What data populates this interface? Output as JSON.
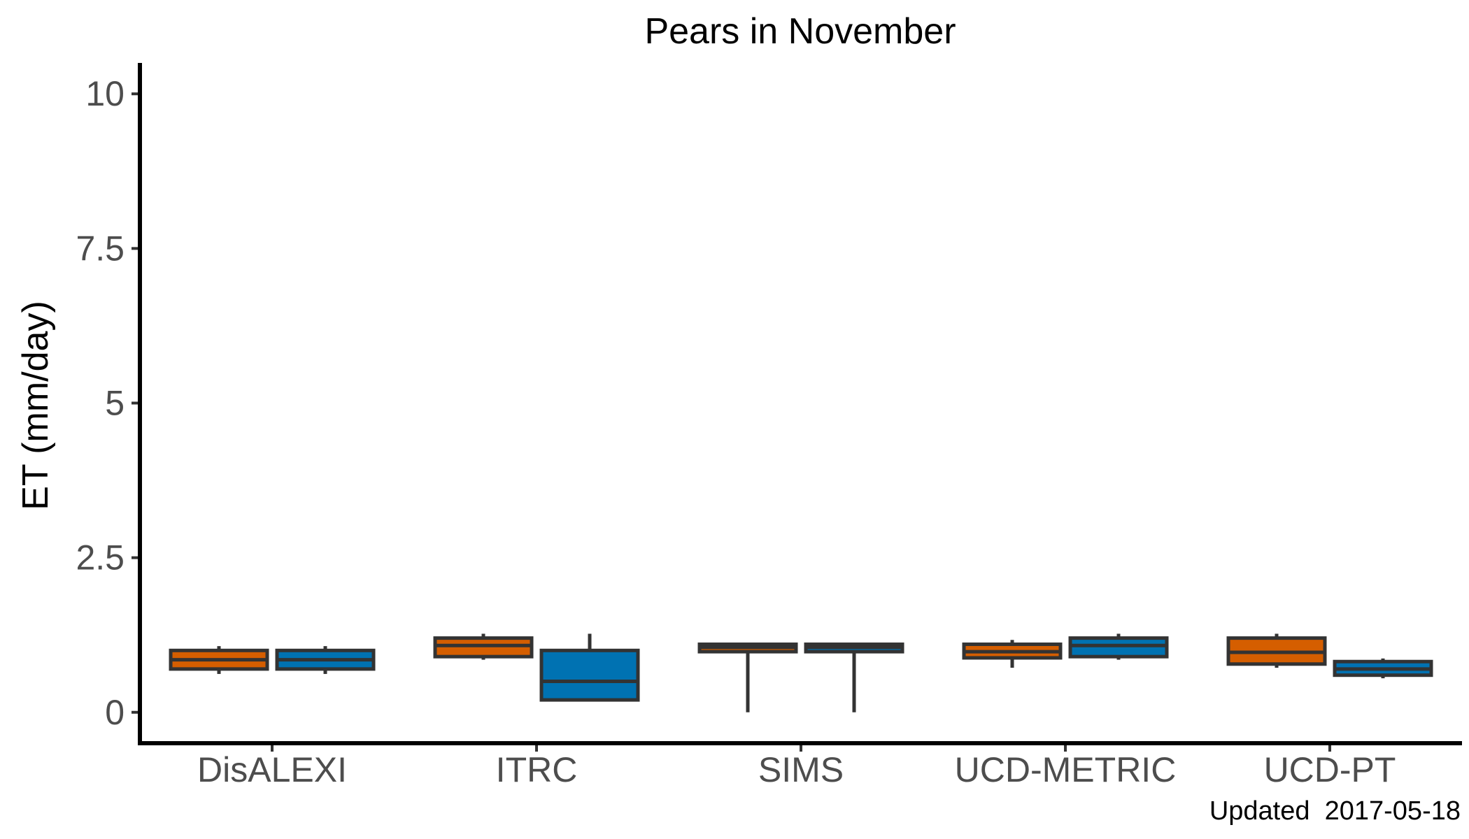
{
  "chart_data": {
    "type": "box",
    "title": "Pears in November",
    "ylabel": "ET (mm/day)",
    "xlabel": "",
    "ylim": [
      -0.5,
      10.5
    ],
    "yticks": [
      0,
      2.5,
      5,
      7.5,
      10
    ],
    "ytick_labels": [
      "0",
      "2.5",
      "5",
      "7.5",
      "10"
    ],
    "grid": false,
    "legend": "none",
    "caption": "Updated  2017-05-18",
    "categories": [
      "DisALEXI",
      "ITRC",
      "SIMS",
      "UCD-METRIC",
      "UCD-PT"
    ],
    "series": [
      {
        "color": "#D55E00",
        "boxes": [
          {
            "min": 0.62,
            "q1": 0.7,
            "median": 0.85,
            "q3": 1.0,
            "max": 1.07
          },
          {
            "min": 0.85,
            "q1": 0.9,
            "median": 1.08,
            "q3": 1.2,
            "max": 1.27
          },
          {
            "min": 0.0,
            "q1": 0.98,
            "median": 1.05,
            "q3": 1.1,
            "max": 1.1
          },
          {
            "min": 0.72,
            "q1": 0.88,
            "median": 0.98,
            "q3": 1.1,
            "max": 1.17
          },
          {
            "min": 0.72,
            "q1": 0.78,
            "median": 0.97,
            "q3": 1.2,
            "max": 1.27
          }
        ]
      },
      {
        "color": "#0072B2",
        "boxes": [
          {
            "min": 0.62,
            "q1": 0.7,
            "median": 0.85,
            "q3": 1.0,
            "max": 1.07
          },
          {
            "min": 0.2,
            "q1": 0.2,
            "median": 0.5,
            "q3": 1.0,
            "max": 1.27
          },
          {
            "min": 0.0,
            "q1": 0.98,
            "median": 1.05,
            "q3": 1.1,
            "max": 1.1
          },
          {
            "min": 0.85,
            "q1": 0.9,
            "median": 1.08,
            "q3": 1.2,
            "max": 1.27
          },
          {
            "min": 0.55,
            "q1": 0.6,
            "median": 0.7,
            "q3": 0.82,
            "max": 0.87
          }
        ]
      }
    ]
  }
}
